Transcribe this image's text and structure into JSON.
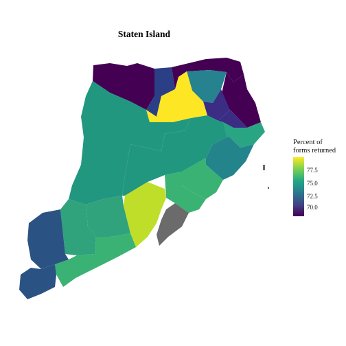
{
  "title": "Staten Island",
  "legend": {
    "title_line1": "Percent of",
    "title_line2": "forms returned",
    "ticks": [
      {
        "label": "77.5",
        "value": 77.5
      },
      {
        "label": "75.0",
        "value": 75.0
      },
      {
        "label": "72.5",
        "value": 72.5
      },
      {
        "label": "70.0",
        "value": 70.0
      }
    ],
    "min": 69.0,
    "max": 79.2
  },
  "colors": {
    "missing": "#6b6b6b",
    "v_69": "#440154",
    "v_71": "#31688e",
    "v_73": "#26828e",
    "v_75": "#1f9e89",
    "v_76": "#35b779",
    "v_78": "#b5de2b",
    "v_79": "#fde725"
  }
}
